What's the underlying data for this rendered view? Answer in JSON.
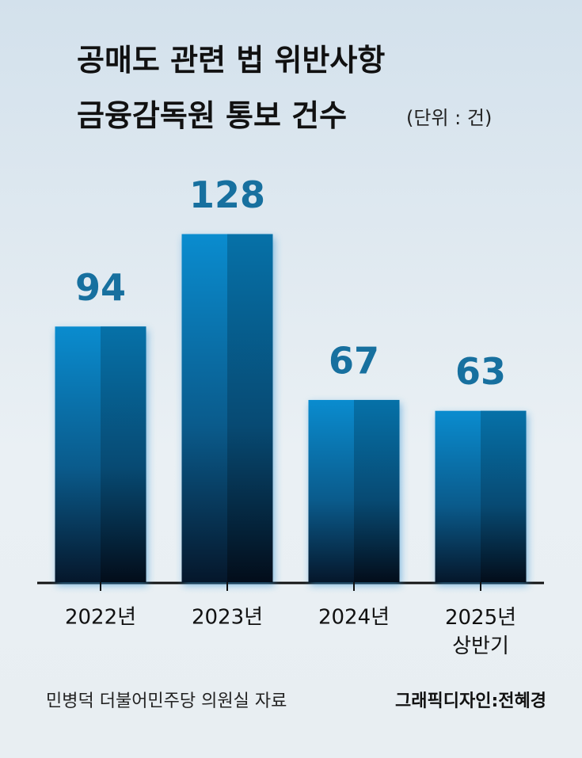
{
  "chart_data": {
    "type": "bar",
    "title": "공매도 관련 법 위반사항\n금융감독원 통보 건수",
    "unit_note": "(단위 : 건)",
    "categories": [
      "2022년",
      "2023년",
      "2024년",
      "2025년\n상반기"
    ],
    "values": [
      94,
      128,
      67,
      63
    ],
    "value_labels": [
      "94",
      "128",
      "67",
      "63"
    ],
    "color": "#0a86c6",
    "ylim": [
      0,
      150
    ],
    "source": "민병덕 더불어민주당 의원실 자료",
    "credit": "그래픽디자인:전혜경"
  }
}
